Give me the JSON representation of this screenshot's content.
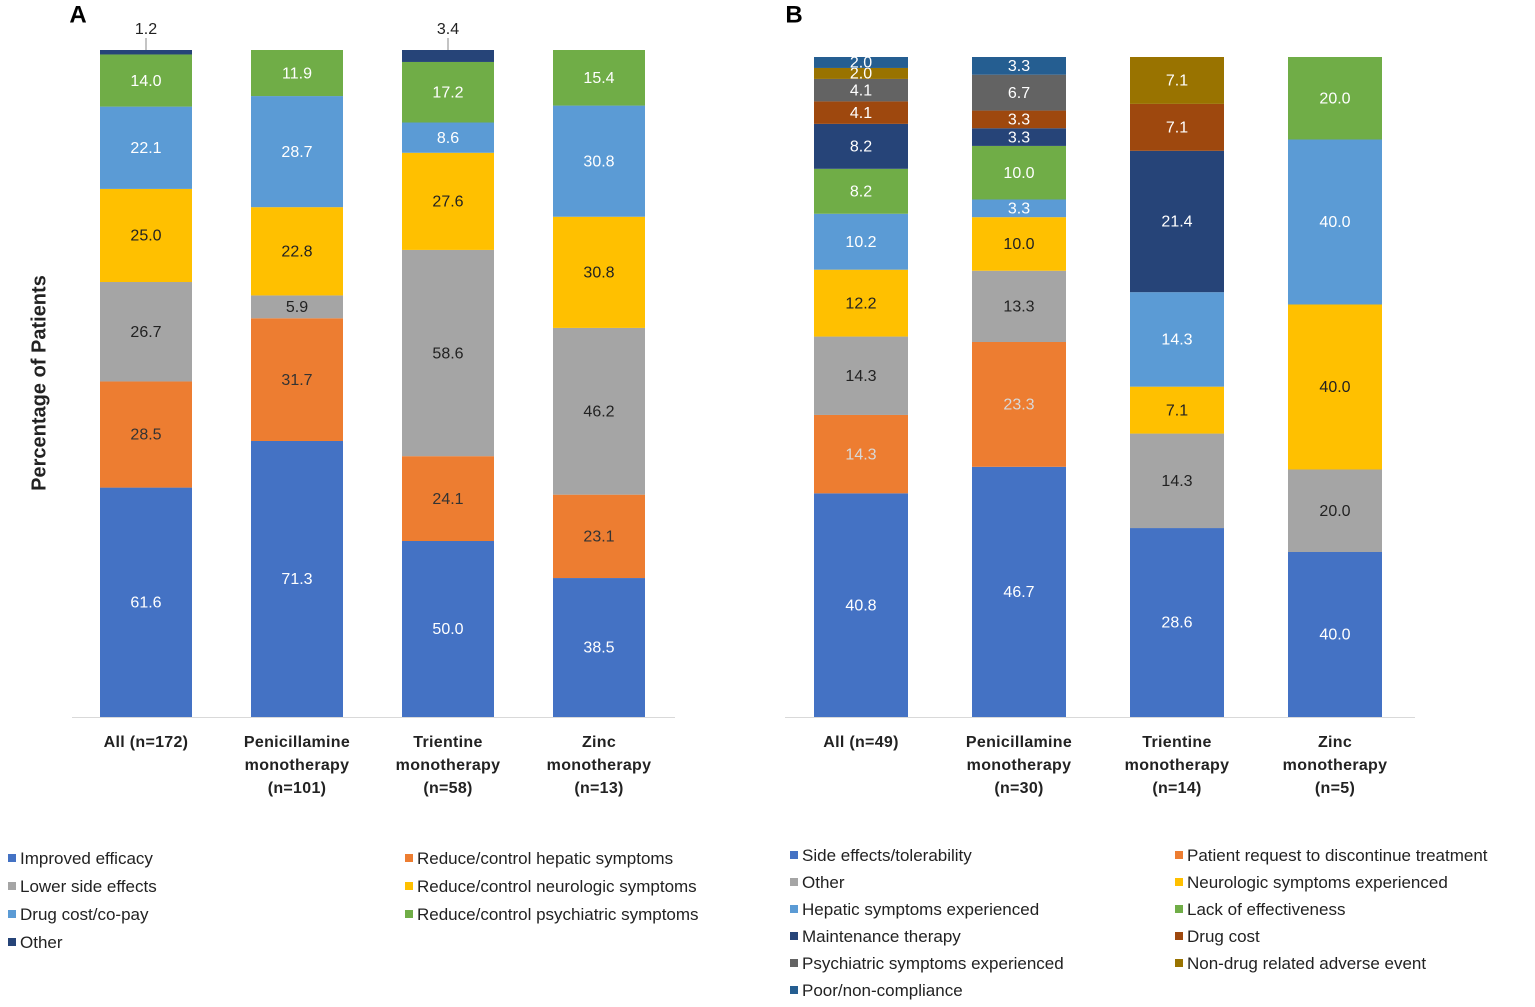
{
  "chart_data": [
    {
      "type": "bar",
      "stacking": "percent",
      "panel": "A",
      "y_label": "Percentage of Patients",
      "categories": [
        "All (n=172)",
        "Penicillamine monotherapy (n=101)",
        "Trientine monotherapy (n=58)",
        "Zinc monotherapy (n=13)"
      ],
      "series": [
        {
          "name": "Improved efficacy",
          "color": "#4472c4",
          "label_color": "#ffffff",
          "values": [
            61.6,
            71.3,
            50.0,
            38.5
          ],
          "value_labels": [
            "61.6",
            "71.3",
            "50.0",
            "38.5"
          ]
        },
        {
          "name": "Reduce/control hepatic symptoms",
          "color": "#ed7d31",
          "label_color": "#333333",
          "values": [
            28.5,
            31.7,
            24.1,
            23.1
          ],
          "value_labels": [
            "28.5",
            "31.7",
            "24.1",
            "23.1"
          ]
        },
        {
          "name": "Lower side effects",
          "color": "#a5a5a5",
          "label_color": "#222222",
          "values": [
            26.7,
            5.9,
            58.6,
            46.2
          ],
          "value_labels": [
            "26.7",
            "5.9",
            "58.6",
            "46.2"
          ]
        },
        {
          "name": "Reduce/control neurologic symptoms",
          "color": "#ffc000",
          "label_color": "#222222",
          "values": [
            25.0,
            22.8,
            27.6,
            30.8
          ],
          "value_labels": [
            "25.0",
            "22.8",
            "27.6",
            "30.8"
          ]
        },
        {
          "name": "Drug cost/co-pay",
          "color": "#5b9bd5",
          "label_color": "#ffffff",
          "values": [
            22.1,
            28.7,
            8.6,
            30.8
          ],
          "value_labels": [
            "22.1",
            "28.7",
            "8.6",
            "30.8"
          ]
        },
        {
          "name": "Reduce/control psychiatric symptoms",
          "color": "#70ad47",
          "label_color": "#ffffff",
          "values": [
            14.0,
            11.9,
            17.2,
            15.4
          ],
          "value_labels": [
            "14.0",
            "11.9",
            "17.2",
            "15.4"
          ]
        },
        {
          "name": "Other",
          "color": "#264478",
          "label_color": "#222222",
          "label_position": "above",
          "values": [
            1.2,
            null,
            3.4,
            null
          ],
          "value_labels": [
            "1.2",
            null,
            "3.4",
            null
          ]
        }
      ]
    },
    {
      "type": "bar",
      "stacking": "percent",
      "panel": "B",
      "categories": [
        "All (n=49)",
        "Penicillamine monotherapy (n=30)",
        "Trientine monotherapy (n=14)",
        "Zinc monotherapy (n=5)"
      ],
      "series": [
        {
          "name": "Side effects/tolerability",
          "color": "#4472c4",
          "label_color": "#ffffff",
          "values": [
            40.8,
            46.7,
            28.6,
            40.0
          ],
          "value_labels": [
            "40.8",
            "46.7",
            "28.6",
            "40.0"
          ]
        },
        {
          "name": "Patient request to discontinue treatment",
          "color": "#ed7d31",
          "label_color": "#d9d9d9",
          "values": [
            14.3,
            23.3,
            null,
            null
          ],
          "value_labels": [
            "14.3",
            "23.3",
            null,
            null
          ]
        },
        {
          "name": "Other",
          "color": "#a5a5a5",
          "label_color": "#222222",
          "values": [
            14.3,
            13.3,
            14.3,
            20.0
          ],
          "value_labels": [
            "14.3",
            "13.3",
            "14.3",
            "20.0"
          ]
        },
        {
          "name": "Neurologic symptoms experienced",
          "color": "#ffc000",
          "label_color": "#222222",
          "values": [
            12.2,
            10.0,
            7.1,
            40.0
          ],
          "value_labels": [
            "12.2",
            "10.0",
            "7.1",
            "40.0"
          ]
        },
        {
          "name": "Hepatic symptoms experienced",
          "color": "#5b9bd5",
          "label_color": "#ffffff",
          "values": [
            10.2,
            3.3,
            14.3,
            40.0
          ],
          "value_labels": [
            "10.2",
            "3.3",
            "14.3",
            "40.0"
          ]
        },
        {
          "name": "Lack of effectiveness",
          "color": "#70ad47",
          "label_color": "#ffffff",
          "values": [
            8.2,
            10.0,
            null,
            20.0
          ],
          "value_labels": [
            "8.2",
            "10.0",
            null,
            "20.0"
          ]
        },
        {
          "name": "Maintenance therapy",
          "color": "#264478",
          "label_color": "#ffffff",
          "values": [
            8.2,
            3.3,
            21.4,
            null
          ],
          "value_labels": [
            "8.2",
            "3.3",
            "21.4",
            null
          ]
        },
        {
          "name": "Drug cost",
          "color": "#9e480e",
          "label_color": "#ffffff",
          "values": [
            4.1,
            3.3,
            7.1,
            null
          ],
          "value_labels": [
            "4.1",
            "3.3",
            "7.1",
            null
          ]
        },
        {
          "name": "Psychiatric symptoms experienced",
          "color": "#636363",
          "label_color": "#ffffff",
          "values": [
            4.1,
            6.7,
            null,
            null
          ],
          "value_labels": [
            "4.1",
            "6.7",
            null,
            null
          ]
        },
        {
          "name": "Non-drug related adverse event",
          "color": "#997300",
          "label_color": "#ffffff",
          "values": [
            2.0,
            null,
            7.1,
            null
          ],
          "value_labels": [
            "2.0",
            null,
            "7.1",
            null
          ]
        },
        {
          "name": "Poor/non-compliance",
          "color": "#255e91",
          "label_color": "#ffffff",
          "values": [
            2.0,
            3.3,
            null,
            null
          ],
          "value_labels": [
            "2.0",
            "3.3",
            null,
            null
          ]
        }
      ]
    }
  ]
}
